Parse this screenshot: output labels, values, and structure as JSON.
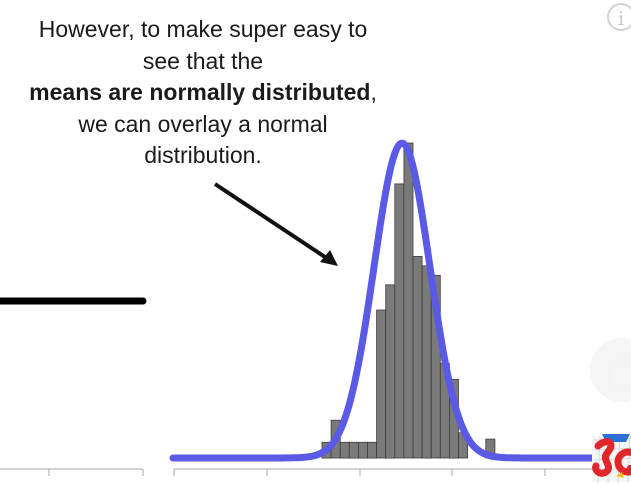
{
  "caption": {
    "line1": "However, to make super easy to",
    "line2": "see that the",
    "line3_bold": "means are normally distributed",
    "line3_tail": ",",
    "line4": "we can overlay a normal",
    "line5": "distribution."
  },
  "controls": {
    "info_icon": "i",
    "ghost_icon": "card-icon"
  },
  "colors": {
    "curve": "#5a5ae6",
    "bars": "#7a7a7a",
    "bar_edge": "#3c3c3c",
    "axis": "#a8a8a8",
    "arrow": "#111111"
  },
  "chart_data": {
    "type": "bar",
    "description_series": "histogram of means with normal overlay",
    "bin_heights": [
      0.05,
      0.12,
      0.05,
      0.05,
      0.05,
      0.05,
      0.47,
      0.55,
      0.87,
      1.0,
      0.64,
      0.61,
      0.58,
      0.3,
      0.25,
      0.08,
      0.0,
      0.0,
      0.06
    ],
    "curve": {
      "kind": "normal",
      "peak": 1.0
    }
  }
}
